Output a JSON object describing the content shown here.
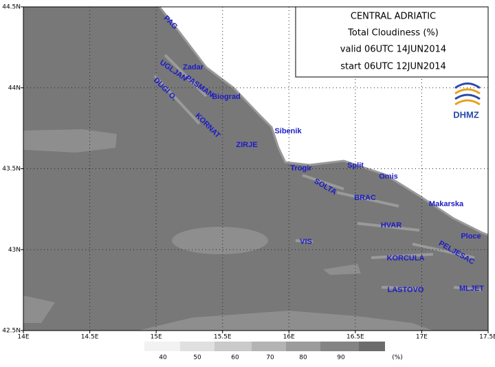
{
  "header": {
    "lines": [
      "CENTRAL ADRIATIC",
      "Total Cloudiness (%)",
      "valid 06UTC 14JUN2014",
      "start 06UTC 12JUN2014"
    ],
    "logo": "DHMZ"
  },
  "axes": {
    "lon_labels": [
      "14E",
      "14.5E",
      "15E",
      "15.5E",
      "16E",
      "16.5E",
      "17E",
      "17.5E"
    ],
    "lat_labels": [
      "44.5N",
      "44N",
      "43.5N",
      "43N",
      "42.5N"
    ]
  },
  "places": [
    "PAG",
    "Zadar",
    "UGLJAN",
    "PASMAN",
    "Biograd",
    "DUGI O.",
    "KORNAT",
    "ZIRJE",
    "Sibenik",
    "Trogir",
    "Split",
    "Omis",
    "SOLTA",
    "BRAC",
    "Makarska",
    "HVAR",
    "Ploce",
    "VIS",
    "PELJESAC",
    "KORCULA",
    "LASTOVO",
    "MLJET"
  ],
  "legend": {
    "labels": [
      "40",
      "50",
      "60",
      "70",
      "80",
      "90"
    ],
    "unit": "(%)"
  }
}
